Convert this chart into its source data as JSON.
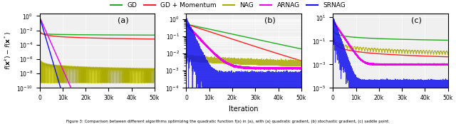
{
  "xlabel": "Iteration",
  "ylabel": "$f(\\mathbf{x}^k) - f(\\mathbf{x}^*)$",
  "n_iter": 50000,
  "legend_labels": [
    "GD",
    "GD + Momentum",
    "NAG",
    "ARNAG",
    "SRNAG"
  ],
  "legend_colors": [
    "#22aa22",
    "#ff2222",
    "#aaaa00",
    "#ee00ee",
    "#1111ee"
  ],
  "panel_labels": [
    "(a)",
    "(b)",
    "(c)"
  ],
  "panel_a": {
    "ylim": [
      1e-10,
      2
    ],
    "yticks": [
      1e-10,
      1e-08,
      1e-06,
      0.0001,
      0.01,
      1.0
    ]
  },
  "panel_b": {
    "ylim": [
      0.0001,
      2
    ],
    "yticks": [
      0.0001,
      0.001,
      0.01,
      0.1,
      1.0
    ]
  },
  "panel_c": {
    "ylim": [
      1e-05,
      20
    ],
    "yticks": [
      1e-05,
      0.0001,
      0.001,
      0.01,
      0.1,
      1.0,
      10.0
    ]
  },
  "background_color": "#f0f0f0",
  "figsize": [
    6.4,
    1.74
  ],
  "dpi": 100,
  "caption": "Figure 3: Comparison between different algorithms optimizing the quadratic function f(x) in (a), with (a) quadratic gradient, (b) stochastic gradient, (c) saddle point."
}
